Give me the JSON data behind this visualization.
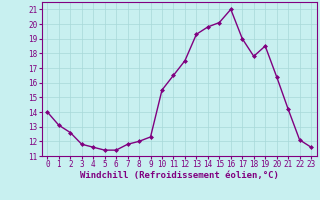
{
  "x": [
    0,
    1,
    2,
    3,
    4,
    5,
    6,
    7,
    8,
    9,
    10,
    11,
    12,
    13,
    14,
    15,
    16,
    17,
    18,
    19,
    20,
    21,
    22,
    23
  ],
  "y": [
    14.0,
    13.1,
    12.6,
    11.8,
    11.6,
    11.4,
    11.4,
    11.8,
    12.0,
    12.3,
    15.5,
    16.5,
    17.5,
    19.3,
    19.8,
    20.1,
    21.0,
    19.0,
    17.8,
    18.5,
    16.4,
    14.2,
    12.1,
    11.6
  ],
  "line_color": "#800080",
  "marker": "D",
  "marker_size": 2.0,
  "bg_color": "#c8f0f0",
  "grid_color": "#a8d8d8",
  "xlabel": "Windchill (Refroidissement éolien,°C)",
  "xlabel_fontsize": 6.5,
  "ylim": [
    11,
    21.5
  ],
  "xlim": [
    -0.5,
    23.5
  ],
  "yticks": [
    11,
    12,
    13,
    14,
    15,
    16,
    17,
    18,
    19,
    20,
    21
  ],
  "xticks": [
    0,
    1,
    2,
    3,
    4,
    5,
    6,
    7,
    8,
    9,
    10,
    11,
    12,
    13,
    14,
    15,
    16,
    17,
    18,
    19,
    20,
    21,
    22,
    23
  ],
  "tick_fontsize": 5.5,
  "line_width": 1.0,
  "spine_color": "#800080"
}
